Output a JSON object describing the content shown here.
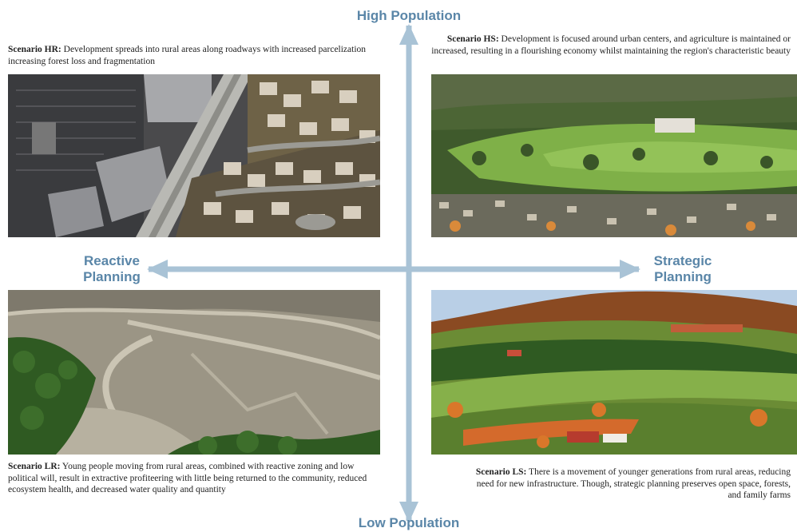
{
  "axes": {
    "top": "High Population",
    "bottom": "Low Population",
    "left_line1": "Reactive",
    "left_line2": "Planning",
    "right_line1": "Strategic",
    "right_line2": "Planning"
  },
  "scenarios": {
    "hr": {
      "label": "Scenario HR:",
      "text": " Development spreads into rural areas along roadways with increased parcelization increasing forest loss and fragmentation",
      "image": "aerial-suburban-development-photo"
    },
    "hs": {
      "label": "Scenario HS:",
      "text": " Development is focused around urban centers, and agriculture is maintained or increased, resulting in a flourishing economy whilst maintaining the region's characteristic beauty",
      "image": "town-and-farmland-valley-photo"
    },
    "lr": {
      "label": "Scenario LR:",
      "text": " Young people moving from rural areas, combined with reactive zoning and low political will, result in extractive profiteering with little being returned to the community, reduced ecosystem health, and decreased water quality and quantity",
      "image": "strip-mine-photo"
    },
    "ls": {
      "label": "Scenario LS:",
      "text": "  There is a movement of  younger generations from rural areas, reducing need for new infrastructure. Though, strategic planning preserves open space, forests, and family farms",
      "image": "rolling-farms-and-forest-photo"
    }
  },
  "colors": {
    "axis": "#a9c3d6",
    "axis_text": "#5a86a8"
  }
}
